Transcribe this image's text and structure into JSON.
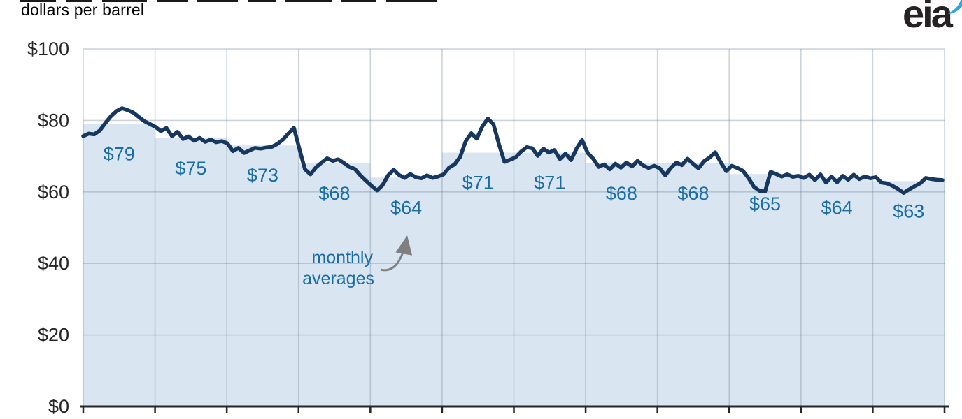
{
  "header": {
    "subtitle": "dollars per barrel"
  },
  "logo": {
    "text": "eia",
    "text_color": "#262223",
    "flame_color": "#2aa9e0"
  },
  "colors": {
    "line": "#17375e",
    "area_fill": "#d9e6f2",
    "grid": "rgba(110,130,150,0.35)",
    "axis": "#262626",
    "tick_text": "#262626",
    "label_blue": "#1a6da2",
    "annotation_arrow": "#7f7f7f"
  },
  "chart_data": {
    "type": "line",
    "title": "",
    "unit_label": "dollars per barrel",
    "grid": true,
    "y_axis": {
      "min": 0,
      "max": 100,
      "tick_values": [
        100,
        80,
        60,
        40,
        20,
        0
      ],
      "tick_labels": [
        "$100",
        "$80",
        "$60",
        "$40",
        "$20",
        "$0"
      ]
    },
    "x_axis": {
      "months": 12,
      "tick_labels": []
    },
    "monthly_averages": {
      "labels": [
        "$79",
        "$75",
        "$73",
        "$68",
        "$64",
        "$71",
        "$71",
        "$68",
        "$68",
        "$65",
        "$64",
        "$63"
      ],
      "values": [
        79,
        75,
        73,
        68,
        64,
        71,
        71,
        68,
        68,
        65,
        64,
        63
      ]
    },
    "daily_prices": [
      75.6,
      76.3,
      76.1,
      77.2,
      79.3,
      81.2,
      82.6,
      83.4,
      82.9,
      82.2,
      81.0,
      79.8,
      79.0,
      78.2,
      77.0,
      77.9,
      75.6,
      76.8,
      74.8,
      75.5,
      74.3,
      75.1,
      74.0,
      74.6,
      73.9,
      74.2,
      73.6,
      71.4,
      72.3,
      70.9,
      71.6,
      72.3,
      72.1,
      72.4,
      72.6,
      73.4,
      74.6,
      76.3,
      77.9,
      72.0,
      66.3,
      64.9,
      66.9,
      68.2,
      69.4,
      68.7,
      69.1,
      68.1,
      67.0,
      66.4,
      64.6,
      63.1,
      61.7,
      60.4,
      61.9,
      64.6,
      66.2,
      64.7,
      63.9,
      65.0,
      64.1,
      63.8,
      64.6,
      63.9,
      64.3,
      64.9,
      66.8,
      67.7,
      69.8,
      74.2,
      76.4,
      74.9,
      78.3,
      80.5,
      78.9,
      73.3,
      68.4,
      69.0,
      69.7,
      71.3,
      72.5,
      72.2,
      70.1,
      72.1,
      71.0,
      71.7,
      69.2,
      70.7,
      68.9,
      72.1,
      74.5,
      70.9,
      69.3,
      67.0,
      67.7,
      66.3,
      67.9,
      66.8,
      68.2,
      67.1,
      68.7,
      67.4,
      66.7,
      67.3,
      66.6,
      64.6,
      66.7,
      68.2,
      67.5,
      69.3,
      67.9,
      66.6,
      68.6,
      69.6,
      71.1,
      68.3,
      65.8,
      67.3,
      66.7,
      65.9,
      63.9,
      61.4,
      60.3,
      60.1,
      65.6,
      65.0,
      64.3,
      64.9,
      64.2,
      64.5,
      63.9,
      64.8,
      63.3,
      64.9,
      62.6,
      64.3,
      62.7,
      64.5,
      63.4,
      64.8,
      63.6,
      64.3,
      63.8,
      64.1,
      62.6,
      62.4,
      61.7,
      60.8,
      59.7,
      60.7,
      61.6,
      62.4,
      63.9,
      63.6,
      63.4,
      63.3
    ],
    "annotation": {
      "lines": [
        "monthly",
        "averages"
      ],
      "points_to": "monthly average steps"
    },
    "legend": {
      "visible": false
    }
  }
}
